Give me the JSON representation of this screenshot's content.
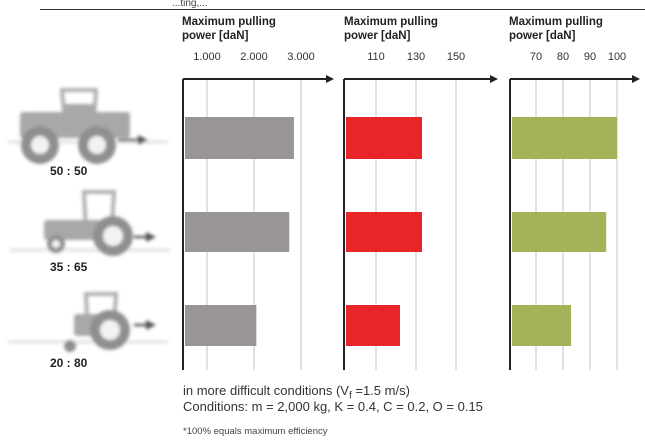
{
  "header": {
    "top_fragment": "...ting,..."
  },
  "panels": [
    {
      "title_line1": "Maximum pulling",
      "title_line2": "power [daN]",
      "ticks": [
        "1.000",
        "2.000",
        "3.000"
      ]
    },
    {
      "title_line1": "Maximum pulling",
      "title_line2": "power [daN]",
      "ticks": [
        "110",
        "130",
        "150"
      ]
    },
    {
      "title_line1": "Maximum pulling",
      "title_line2": "power [daN]",
      "ticks": [
        "70",
        "80",
        "90",
        "100"
      ]
    }
  ],
  "rows": [
    {
      "ratio": "50 : 50"
    },
    {
      "ratio": "35 : 65"
    },
    {
      "ratio": "20 : 80"
    }
  ],
  "footer": {
    "line1_prefix": "in more difficult conditions (V",
    "line1_sub": "f",
    "line1_suffix": " =1.5 m/s)",
    "line2": "Conditions: m = 2,000 kg,  K = 0.4, C = 0.2, O = 0.15",
    "note": "*100% equals maximum efficiency"
  },
  "colors": {
    "panel1": "#999595",
    "panel2": "#e8262a",
    "panel3": "#a5b25a",
    "tractor": "#a3a3a3"
  },
  "chart_data": [
    {
      "type": "bar",
      "orientation": "horizontal",
      "categories": [
        "50 : 50",
        "35 : 65",
        "20 : 80"
      ],
      "values": [
        2850,
        2750,
        2050
      ],
      "xlim": [
        0,
        3200
      ],
      "xlabel": "Maximum pulling power [daN]",
      "ticks": [
        1000,
        2000,
        3000
      ]
    },
    {
      "type": "bar",
      "orientation": "horizontal",
      "categories": [
        "50 : 50",
        "35 : 65",
        "20 : 80"
      ],
      "values": [
        133,
        133,
        122
      ],
      "xlim": [
        90,
        160
      ],
      "xlabel": "Maximum pulling power [daN]",
      "ticks": [
        110,
        130,
        150
      ]
    },
    {
      "type": "bar",
      "orientation": "horizontal",
      "categories": [
        "50 : 50",
        "35 : 65",
        "20 : 80"
      ],
      "values": [
        100,
        96,
        83
      ],
      "xlim": [
        60,
        105
      ],
      "xlabel": "Maximum pulling power [daN]",
      "ticks": [
        70,
        80,
        90,
        100
      ]
    }
  ]
}
